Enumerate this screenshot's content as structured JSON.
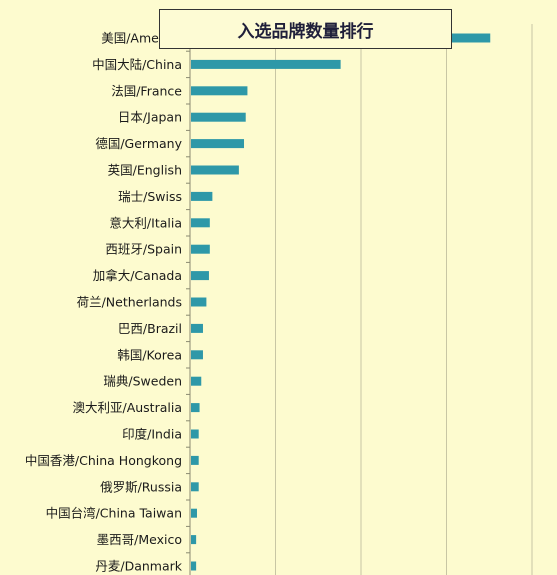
{
  "chart_data": {
    "type": "bar",
    "orientation": "horizontal",
    "title": "入选品牌数量排行",
    "categories": [
      "美国/America",
      "中国大陆/China",
      "法国/France",
      "日本/Japan",
      "德国/Germany",
      "英国/English",
      "瑞士/Swiss",
      "意大利/Italia",
      "西班牙/Spain",
      "加拿大/Canada",
      "荷兰/Netherlands",
      "巴西/Brazil",
      "韩国/Korea",
      "瑞典/Sweden",
      "澳大利亚/Australia",
      "印度/India",
      "中国香港/China Hongkong",
      "俄罗斯/Russia",
      "中国台湾/China Taiwan",
      "墨西哥/Mexico",
      "丹麦/Danmark"
    ],
    "values": [
      350,
      175,
      66,
      64,
      62,
      56,
      25,
      22,
      22,
      21,
      18,
      14,
      14,
      12,
      10,
      9,
      9,
      9,
      7,
      6,
      6
    ],
    "xlim": [
      0,
      400
    ],
    "grid": true,
    "colors": {
      "bar": "#2e98a8",
      "background": "#fdfbcf",
      "grid": "#c8c6a4"
    }
  }
}
